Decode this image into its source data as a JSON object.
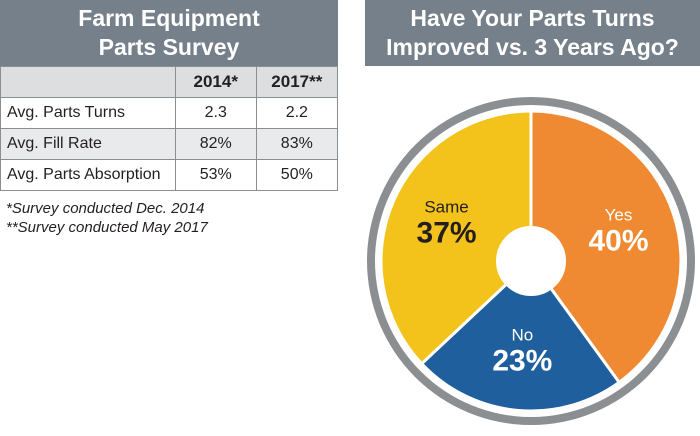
{
  "table_panel": {
    "title_line1": "Farm Equipment",
    "title_line2": "Parts Survey",
    "columns": [
      "",
      "2014*",
      "2017**"
    ],
    "rows": [
      {
        "label": "Avg. Parts Turns",
        "v2014": "2.3",
        "v2017": "2.2"
      },
      {
        "label": "Avg. Fill Rate",
        "v2014": "82%",
        "v2017": "83%"
      },
      {
        "label": "Avg. Parts Absorption",
        "v2014": "53%",
        "v2017": "50%"
      }
    ],
    "footnote1": "*Survey conducted Dec. 2014",
    "footnote2": "**Survey conducted May 2017"
  },
  "pie_panel": {
    "title_line1": "Have Your Parts Turns",
    "title_line2": "Improved vs. 3 Years Ago?"
  },
  "colors": {
    "banner": "#76808a",
    "yes": "#f08a32",
    "no": "#1f5f9e",
    "same": "#f3c21b",
    "ring": "#8c8f92"
  },
  "chart_data": [
    {
      "type": "table",
      "title": "Farm Equipment Parts Survey",
      "columns": [
        "2014*",
        "2017**"
      ],
      "rows": [
        {
          "label": "Avg. Parts Turns",
          "values": [
            2.3,
            2.2
          ]
        },
        {
          "label": "Avg. Fill Rate",
          "values": [
            82,
            83
          ],
          "unit": "%"
        },
        {
          "label": "Avg. Parts Absorption",
          "values": [
            53,
            50
          ],
          "unit": "%"
        }
      ]
    },
    {
      "type": "pie",
      "title": "Have Your Parts Turns Improved vs. 3 Years Ago?",
      "slices": [
        {
          "label": "Yes",
          "value": 40,
          "display": "40%"
        },
        {
          "label": "No",
          "value": 23,
          "display": "23%"
        },
        {
          "label": "Same",
          "value": 37,
          "display": "37%"
        }
      ]
    }
  ]
}
